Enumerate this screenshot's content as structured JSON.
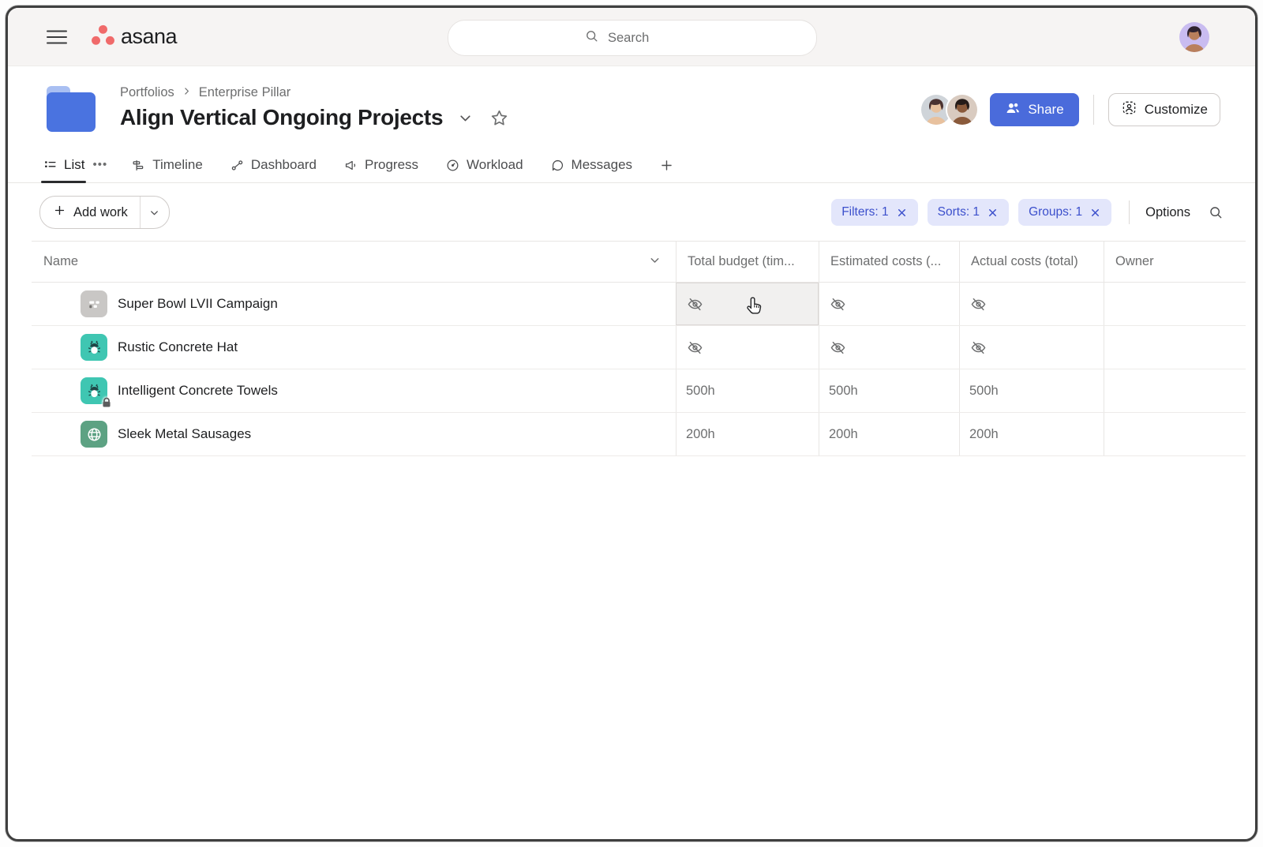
{
  "app": {
    "name": "asana"
  },
  "topbar": {
    "search_placeholder": "Search"
  },
  "page_header": {
    "breadcrumb": [
      "Portfolios",
      "Enterprise Pillar"
    ],
    "title": "Align Vertical Ongoing Projects",
    "share_label": "Share",
    "customize_label": "Customize"
  },
  "tabs": [
    {
      "label": "List",
      "icon": "list-icon",
      "active": true,
      "overflow": true
    },
    {
      "label": "Timeline",
      "icon": "timeline-icon",
      "active": false
    },
    {
      "label": "Dashboard",
      "icon": "dashboard-icon",
      "active": false
    },
    {
      "label": "Progress",
      "icon": "progress-icon",
      "active": false
    },
    {
      "label": "Workload",
      "icon": "workload-icon",
      "active": false
    },
    {
      "label": "Messages",
      "icon": "messages-icon",
      "active": false
    }
  ],
  "toolbar": {
    "add_work_label": "Add work",
    "filter_chips": [
      {
        "label": "Filters: 1"
      },
      {
        "label": "Sorts: 1"
      },
      {
        "label": "Groups: 1"
      }
    ],
    "options_label": "Options"
  },
  "table": {
    "columns": [
      "Name",
      "Total budget (tim...",
      "Estimated costs (...",
      "Actual costs (total)",
      "Owner"
    ],
    "rows": [
      {
        "name": "Super Bowl LVII Campaign",
        "icon": "timeline-project-icon",
        "icon_bg": "#c9c7c5",
        "locked": false,
        "cells": [
          "hidden",
          "hidden",
          "hidden"
        ],
        "owner": ""
      },
      {
        "name": "Rustic Concrete Hat",
        "icon": "bug-icon",
        "icon_bg": "#3fc6b2",
        "locked": false,
        "cells": [
          "hidden",
          "hidden",
          "hidden"
        ],
        "owner": ""
      },
      {
        "name": "Intelligent Concrete Towels",
        "icon": "bug-icon",
        "icon_bg": "#3fc6b2",
        "locked": true,
        "cells": [
          "500h",
          "500h",
          "500h"
        ],
        "owner": ""
      },
      {
        "name": "Sleek Metal Sausages",
        "icon": "globe-icon",
        "icon_bg": "#5da283",
        "locked": false,
        "cells": [
          "200h",
          "200h",
          "200h"
        ],
        "owner": ""
      }
    ],
    "hovered_cell": {
      "row_index": 0,
      "cell_index": 0
    }
  },
  "colors": {
    "brand_coral": "#f06a6a",
    "accent_blue": "#4a6bdb",
    "chip_bg": "#e3e6fb",
    "chip_text": "#3c50cc",
    "teal_icon": "#3fc6b2",
    "green_icon": "#5da283",
    "gray_icon": "#c9c7c5"
  }
}
